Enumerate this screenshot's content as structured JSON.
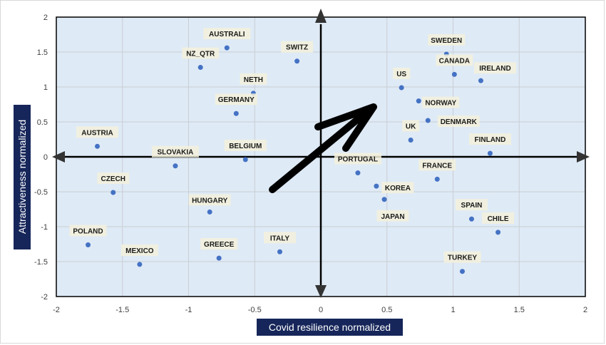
{
  "chart_data": {
    "type": "scatter",
    "xlabel": "Covid resilience normalized",
    "ylabel": "Attractiveness normalized",
    "xlim": [
      -2,
      2
    ],
    "ylim": [
      -2,
      2
    ],
    "x_ticks": [
      "-2",
      "-1.5",
      "-1",
      "-0.5",
      "0",
      "0.5",
      "1",
      "1.5",
      "2"
    ],
    "y_ticks": [
      "2",
      "1.5",
      "1",
      "0.5",
      "0",
      "-0.5",
      "-1",
      "-1.5",
      "-2"
    ],
    "grid": true,
    "colors": {
      "plot_bg": "#deeaf6",
      "point": "#4472c4",
      "label_bg": "#f4f1dc",
      "axis": "#000000",
      "label_box": "#16265a"
    },
    "points": [
      {
        "label": "AUSTRALI",
        "x": -0.71,
        "y": 1.56
      },
      {
        "label": "NZ_QTR",
        "x": -0.91,
        "y": 1.28
      },
      {
        "label": "SWITZ",
        "x": -0.18,
        "y": 1.37
      },
      {
        "label": "NETH",
        "x": -0.51,
        "y": 0.91
      },
      {
        "label": "GERMANY",
        "x": -0.64,
        "y": 0.62
      },
      {
        "label": "AUSTRIA",
        "x": -1.69,
        "y": 0.15
      },
      {
        "label": "SLOVAKIA",
        "x": -1.1,
        "y": -0.13
      },
      {
        "label": "BELGIUM",
        "x": -0.57,
        "y": -0.04
      },
      {
        "label": "CZECH",
        "x": -1.57,
        "y": -0.51
      },
      {
        "label": "HUNGARY",
        "x": -0.84,
        "y": -0.79
      },
      {
        "label": "POLAND",
        "x": -1.76,
        "y": -1.26
      },
      {
        "label": "MEXICO",
        "x": -1.37,
        "y": -1.54
      },
      {
        "label": "GREECE",
        "x": -0.77,
        "y": -1.45
      },
      {
        "label": "ITALY",
        "x": -0.31,
        "y": -1.36
      },
      {
        "label": "SWEDEN",
        "x": 0.95,
        "y": 1.47
      },
      {
        "label": "CANADA",
        "x": 1.01,
        "y": 1.18
      },
      {
        "label": "IRELAND",
        "x": 1.21,
        "y": 1.09
      },
      {
        "label": "US",
        "x": 0.61,
        "y": 0.99
      },
      {
        "label": "NORWAY",
        "x": 0.74,
        "y": 0.8
      },
      {
        "label": "DENMARK",
        "x": 0.81,
        "y": 0.52
      },
      {
        "label": "UK",
        "x": 0.68,
        "y": 0.24
      },
      {
        "label": "FINLAND",
        "x": 1.28,
        "y": 0.05
      },
      {
        "label": "PORTUGAL",
        "x": 0.28,
        "y": -0.23
      },
      {
        "label": "KOREA",
        "x": 0.42,
        "y": -0.42
      },
      {
        "label": "JAPAN",
        "x": 0.48,
        "y": -0.61
      },
      {
        "label": "FRANCE",
        "x": 0.88,
        "y": -0.32
      },
      {
        "label": "SPAIN",
        "x": 1.14,
        "y": -0.89
      },
      {
        "label": "CHILE",
        "x": 1.34,
        "y": -1.08
      },
      {
        "label": "TURKEY",
        "x": 1.07,
        "y": -1.64
      }
    ]
  }
}
